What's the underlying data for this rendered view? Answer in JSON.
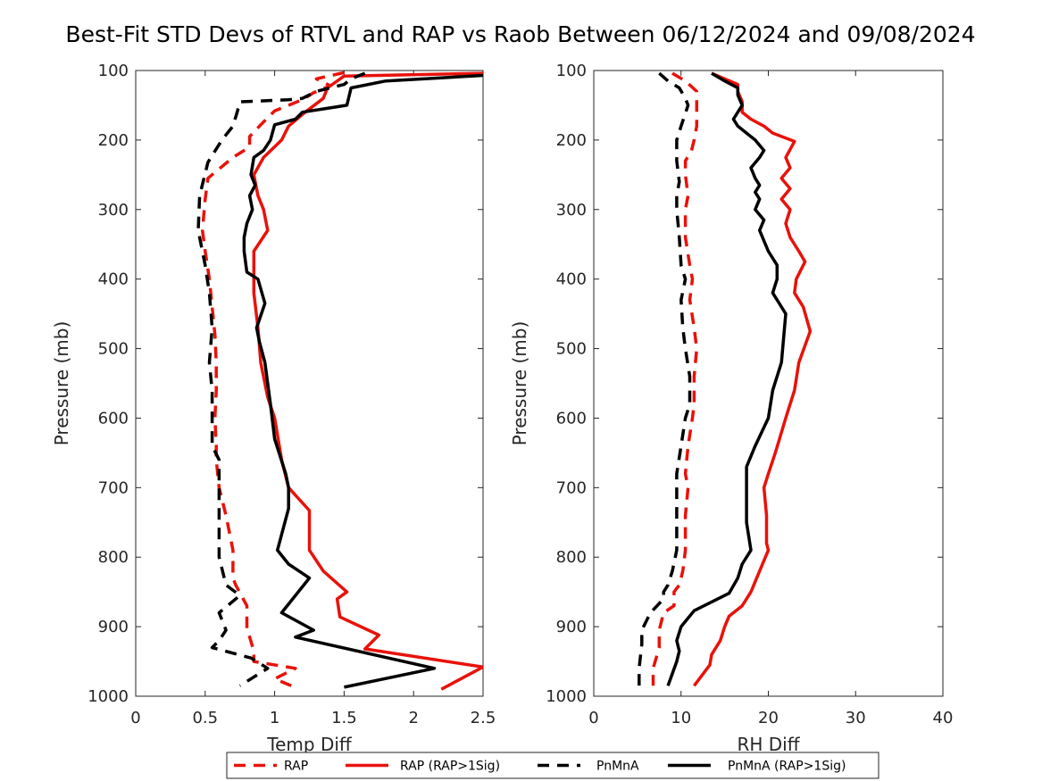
{
  "figure": {
    "title": "Best-Fit STD Devs of RTVL and RAP vs Raob Between 06/12/2024 and 09/08/2024"
  },
  "legend": {
    "placement": "bottom-center",
    "entries": [
      {
        "label": "RAP",
        "color": "#e8120a",
        "style": "dashed"
      },
      {
        "label": "RAP (RAP>1Sig)",
        "color": "#e8120a",
        "style": "solid"
      },
      {
        "label": "PnMnA",
        "color": "#000000",
        "style": "dashed"
      },
      {
        "label": "PnMnA (RAP>1Sig)",
        "color": "#000000",
        "style": "solid"
      }
    ]
  },
  "chart_data": [
    {
      "type": "line",
      "orientation": "vertical-profile",
      "xlabel": "Temp Diff",
      "ylabel": "Pressure (mb)",
      "xlim": [
        0,
        2.5
      ],
      "ylim": [
        100,
        1000
      ],
      "y_reversed": true,
      "xticks": [
        "0",
        "0.5",
        "1",
        "1.5",
        "2",
        "2.5"
      ],
      "yticks": [
        "100",
        "200",
        "300",
        "400",
        "500",
        "600",
        "700",
        "800",
        "900",
        "1000"
      ],
      "grid": false,
      "series": [
        {
          "name": "RAP",
          "color": "#e8120a",
          "style": "dashed",
          "x": [
            1.5,
            1.3,
            1.4,
            1.28,
            1.2,
            1.0,
            0.9,
            0.82,
            0.82,
            0.7,
            0.52,
            0.5,
            0.48,
            0.5,
            0.53,
            0.55,
            0.57,
            0.58,
            0.58,
            0.57,
            0.58,
            0.58,
            0.6,
            0.65,
            0.7,
            0.7,
            0.72,
            0.8,
            0.8,
            0.82,
            0.85,
            0.85,
            1.15,
            1.0,
            1.12
          ],
          "y": [
            103,
            112,
            122,
            132,
            142,
            158,
            178,
            195,
            210,
            225,
            255,
            285,
            330,
            360,
            400,
            440,
            480,
            520,
            560,
            600,
            640,
            660,
            700,
            740,
            790,
            830,
            840,
            870,
            905,
            915,
            935,
            950,
            960,
            975,
            985
          ]
        },
        {
          "name": "RAP (RAP>1Sig)",
          "color": "#e8120a",
          "style": "solid",
          "x": [
            2.5,
            1.5,
            1.38,
            1.35,
            1.22,
            1.1,
            1.05,
            0.92,
            0.85,
            0.88,
            0.92,
            0.95,
            0.85,
            0.85,
            0.88,
            0.9,
            0.95,
            1.0,
            1.05,
            1.1,
            1.25,
            1.25,
            1.35,
            1.52,
            1.45,
            1.47,
            1.75,
            1.65,
            2.5,
            2.2
          ],
          "y": [
            104,
            108,
            125,
            140,
            160,
            180,
            200,
            225,
            250,
            280,
            300,
            330,
            360,
            420,
            470,
            520,
            570,
            600,
            660,
            700,
            733,
            790,
            820,
            850,
            860,
            886,
            912,
            932,
            958,
            990
          ]
        },
        {
          "name": "PnMnA",
          "color": "#000000",
          "style": "dashed",
          "x": [
            1.65,
            1.55,
            1.5,
            1.3,
            1.2,
            1.1,
            0.75,
            0.73,
            0.7,
            0.62,
            0.52,
            0.46,
            0.45,
            0.5,
            0.53,
            0.55,
            0.53,
            0.55,
            0.55,
            0.55,
            0.6,
            0.6,
            0.6,
            0.6,
            0.65,
            0.75,
            0.6,
            0.65,
            0.6,
            0.55,
            0.83,
            0.95,
            0.75
          ],
          "y": [
            104,
            112,
            120,
            130,
            140,
            142,
            145,
            160,
            180,
            200,
            232,
            280,
            330,
            380,
            420,
            470,
            520,
            560,
            600,
            640,
            660,
            700,
            740,
            800,
            840,
            855,
            880,
            905,
            920,
            930,
            945,
            960,
            985
          ]
        },
        {
          "name": "PnMnA (RAP>1Sig)",
          "color": "#000000",
          "style": "solid",
          "x": [
            2.5,
            1.8,
            1.55,
            1.52,
            1.2,
            1.15,
            1.0,
            0.97,
            0.92,
            0.85,
            0.83,
            0.86,
            0.82,
            0.84,
            0.8,
            0.78,
            0.78,
            0.8,
            0.88,
            0.93,
            0.87,
            0.89,
            0.93,
            0.97,
            1.0,
            1.08,
            1.1,
            1.1,
            1.02,
            1.1,
            1.25,
            1.05,
            1.28,
            1.15,
            2.15,
            1.5
          ],
          "y": [
            107,
            115,
            125,
            150,
            160,
            170,
            178,
            200,
            215,
            225,
            250,
            265,
            280,
            300,
            320,
            340,
            360,
            390,
            400,
            435,
            470,
            490,
            520,
            580,
            630,
            680,
            700,
            730,
            790,
            810,
            830,
            880,
            905,
            915,
            960,
            987
          ]
        }
      ]
    },
    {
      "type": "line",
      "orientation": "vertical-profile",
      "xlabel": "RH Diff",
      "ylabel": "Pressure (mb)",
      "xlim": [
        0,
        40
      ],
      "ylim": [
        100,
        1000
      ],
      "y_reversed": true,
      "xticks": [
        "0",
        "10",
        "20",
        "30",
        "40"
      ],
      "yticks": [
        "100",
        "200",
        "300",
        "400",
        "500",
        "600",
        "700",
        "800",
        "900",
        "1000"
      ],
      "grid": false,
      "series": [
        {
          "name": "RAP",
          "color": "#e8120a",
          "style": "dashed",
          "x": [
            9.0,
            10.5,
            11.8,
            11.8,
            11.8,
            11.5,
            11.2,
            10.5,
            10.5,
            10.8,
            10.5,
            10.5,
            11.0,
            11.3,
            11.0,
            11.5,
            11.8,
            11.5,
            11.5,
            11.3,
            10.8,
            10.5,
            10.8,
            10.5,
            10.5,
            10.2,
            9.8,
            9.2,
            9.2,
            8.0,
            7.5,
            7.5,
            6.8,
            6.8
          ],
          "y": [
            104,
            115,
            130,
            160,
            180,
            200,
            215,
            230,
            250,
            280,
            300,
            340,
            380,
            400,
            430,
            470,
            500,
            540,
            580,
            600,
            640,
            680,
            700,
            740,
            790,
            820,
            840,
            850,
            870,
            880,
            905,
            930,
            960,
            985
          ]
        },
        {
          "name": "RAP (RAP>1Sig)",
          "color": "#e8120a",
          "style": "solid",
          "x": [
            13.5,
            16.5,
            16.5,
            17.0,
            17.0,
            18.0,
            19.5,
            20.5,
            23.0,
            22.0,
            22.5,
            21.5,
            22.5,
            21.5,
            22.5,
            22.0,
            22.5,
            23.5,
            24.2,
            23.2,
            23.0,
            24.0,
            24.8,
            23.5,
            23.0,
            22.0,
            20.8,
            20.0,
            19.5,
            19.8,
            19.8,
            20.0,
            19.0,
            18.0,
            17.0,
            15.5,
            15.0,
            14.5,
            13.5,
            13.3,
            11.5
          ],
          "y": [
            104,
            120,
            130,
            145,
            160,
            170,
            180,
            190,
            202,
            225,
            240,
            255,
            270,
            285,
            300,
            320,
            340,
            360,
            375,
            400,
            420,
            440,
            475,
            520,
            560,
            600,
            650,
            680,
            700,
            740,
            780,
            790,
            820,
            850,
            870,
            885,
            900,
            920,
            940,
            955,
            985
          ]
        },
        {
          "name": "PnMnA",
          "color": "#000000",
          "style": "dashed",
          "x": [
            7.5,
            8.5,
            9.8,
            10.5,
            10.8,
            10.0,
            9.5,
            9.5,
            9.8,
            9.5,
            9.5,
            9.8,
            10.0,
            10.5,
            10.0,
            10.2,
            10.5,
            11.0,
            11.0,
            10.5,
            10.0,
            9.5,
            9.5,
            9.5,
            9.5,
            9.0,
            8.5,
            8.0,
            8.0,
            6.5,
            5.5,
            5.5,
            5.2,
            5.2
          ],
          "y": [
            104,
            115,
            125,
            140,
            150,
            180,
            200,
            230,
            260,
            280,
            300,
            340,
            380,
            400,
            430,
            470,
            500,
            540,
            580,
            600,
            640,
            680,
            700,
            740,
            790,
            820,
            840,
            850,
            860,
            880,
            905,
            925,
            960,
            985
          ]
        },
        {
          "name": "PnMnA (RAP>1Sig)",
          "color": "#000000",
          "style": "solid",
          "x": [
            13.5,
            15.0,
            16.5,
            16.5,
            17.0,
            16.5,
            16.0,
            16.5,
            17.5,
            18.5,
            19.5,
            19.0,
            18.0,
            18.5,
            19.0,
            18.5,
            19.0,
            18.5,
            19.5,
            19.0,
            19.5,
            20.0,
            21.0,
            21.0,
            20.5,
            21.0,
            22.0,
            21.5,
            20.5,
            20.0,
            18.5,
            17.5,
            17.5,
            17.5,
            18.0,
            17.0,
            16.5,
            15.5,
            11.5,
            10.0,
            9.5,
            9.8,
            9.5,
            8.5
          ],
          "y": [
            104,
            115,
            125,
            135,
            150,
            160,
            170,
            180,
            190,
            200,
            215,
            225,
            240,
            255,
            265,
            275,
            285,
            300,
            315,
            330,
            345,
            360,
            380,
            400,
            420,
            430,
            450,
            520,
            560,
            600,
            640,
            670,
            700,
            750,
            790,
            810,
            830,
            852,
            877,
            900,
            920,
            935,
            950,
            985
          ]
        }
      ]
    }
  ]
}
